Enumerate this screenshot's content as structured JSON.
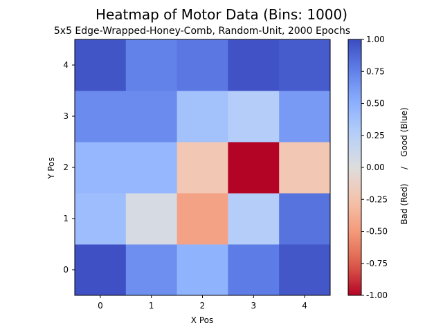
{
  "chart_data": {
    "type": "heatmap",
    "title": "Heatmap of Motor Data (Bins: 1000)",
    "subtitle": "5x5 Edge-Wrapped-Honey-Comb, Random-Unit, 2000 Epochs",
    "xlabel": "X Pos",
    "ylabel": "Y Pos",
    "x_categories": [
      "0",
      "1",
      "2",
      "3",
      "4"
    ],
    "y_categories": [
      "0",
      "1",
      "2",
      "3",
      "4"
    ],
    "colorscale": "coolwarm",
    "colorscale_reversed": true,
    "clim": [
      -1.0,
      1.0
    ],
    "colorbar_ticks": [
      "-1.00",
      "-0.75",
      "-0.50",
      "-0.25",
      "0.00",
      "0.25",
      "0.50",
      "0.75",
      "1.00"
    ],
    "colorbar_label_parts": [
      "Bad (Red)",
      "/",
      "Good (Blue)"
    ],
    "values_by_row_y": [
      [
        0.98,
        0.68,
        0.48,
        0.78,
        0.95
      ],
      [
        0.4,
        0.05,
        -0.45,
        0.27,
        0.82
      ],
      [
        0.45,
        0.45,
        -0.22,
        -1.0,
        -0.22
      ],
      [
        0.7,
        0.7,
        0.37,
        0.27,
        0.62
      ],
      [
        0.96,
        0.75,
        0.8,
        0.97,
        0.93
      ]
    ]
  }
}
